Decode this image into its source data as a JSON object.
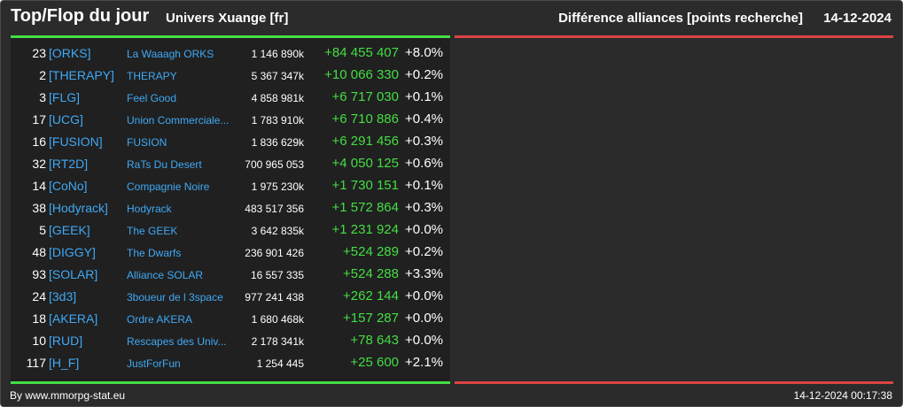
{
  "header": {
    "title": "Top/Flop du jour",
    "universe": "Univers Xuange [fr]",
    "subtitle": "Différence alliances [points recherche]",
    "date": "14-12-2024"
  },
  "colors": {
    "top_accent": "#44dd44",
    "flop_accent": "#dd4444",
    "link": "#3fa9f5",
    "background": "#2b2b2b"
  },
  "top_rows": [
    {
      "rank": "23",
      "tag": "[ORKS]",
      "name": "La Waaagh ORKS",
      "points": "1 146 890k",
      "diff": "+84 455 407",
      "pct": "+8.0%"
    },
    {
      "rank": "2",
      "tag": "[THERAPY]",
      "name": "THERAPY",
      "points": "5 367 347k",
      "diff": "+10 066 330",
      "pct": "+0.2%"
    },
    {
      "rank": "3",
      "tag": "[FLG]",
      "name": "Feel Good",
      "points": "4 858 981k",
      "diff": "+6 717 030",
      "pct": "+0.1%"
    },
    {
      "rank": "17",
      "tag": "[UCG]",
      "name": "Union Commerciale...",
      "points": "1 783 910k",
      "diff": "+6 710 886",
      "pct": "+0.4%"
    },
    {
      "rank": "16",
      "tag": "[FUSION]",
      "name": "FUSION",
      "points": "1 836 629k",
      "diff": "+6 291 456",
      "pct": "+0.3%"
    },
    {
      "rank": "32",
      "tag": "[RT2D]",
      "name": "RaTs Du Desert",
      "points": "700 965 053",
      "diff": "+4 050 125",
      "pct": "+0.6%"
    },
    {
      "rank": "14",
      "tag": "[CoNo]",
      "name": "Compagnie Noire",
      "points": "1 975 230k",
      "diff": "+1 730 151",
      "pct": "+0.1%"
    },
    {
      "rank": "38",
      "tag": "[Hodyrack]",
      "name": "Hodyrack",
      "points": "483 517 356",
      "diff": "+1 572 864",
      "pct": "+0.3%"
    },
    {
      "rank": "5",
      "tag": "[GEEK]",
      "name": "The GEEK",
      "points": "3 642 835k",
      "diff": "+1 231 924",
      "pct": "+0.0%"
    },
    {
      "rank": "48",
      "tag": "[DIGGY]",
      "name": "The Dwarfs",
      "points": "236 901 426",
      "diff": "+524 289",
      "pct": "+0.2%"
    },
    {
      "rank": "93",
      "tag": "[SOLAR]",
      "name": "Alliance SOLAR",
      "points": "16 557 335",
      "diff": "+524 288",
      "pct": "+3.3%"
    },
    {
      "rank": "24",
      "tag": "[3d3]",
      "name": "3boueur de l 3space",
      "points": "977 241 438",
      "diff": "+262 144",
      "pct": "+0.0%"
    },
    {
      "rank": "18",
      "tag": "[AKERA]",
      "name": "Ordre AKERA",
      "points": "1 680 468k",
      "diff": "+157 287",
      "pct": "+0.0%"
    },
    {
      "rank": "10",
      "tag": "[RUD]",
      "name": "Rescapes des Univ...",
      "points": "2 178 341k",
      "diff": "+78 643",
      "pct": "+0.0%"
    },
    {
      "rank": "117",
      "tag": "[H_F]",
      "name": "JustForFun",
      "points": "1 254 445",
      "diff": "+25 600",
      "pct": "+2.1%"
    }
  ],
  "footer": {
    "source": "By www.mmorpg-stat.eu",
    "timestamp": "14-12-2024 00:17:38"
  }
}
